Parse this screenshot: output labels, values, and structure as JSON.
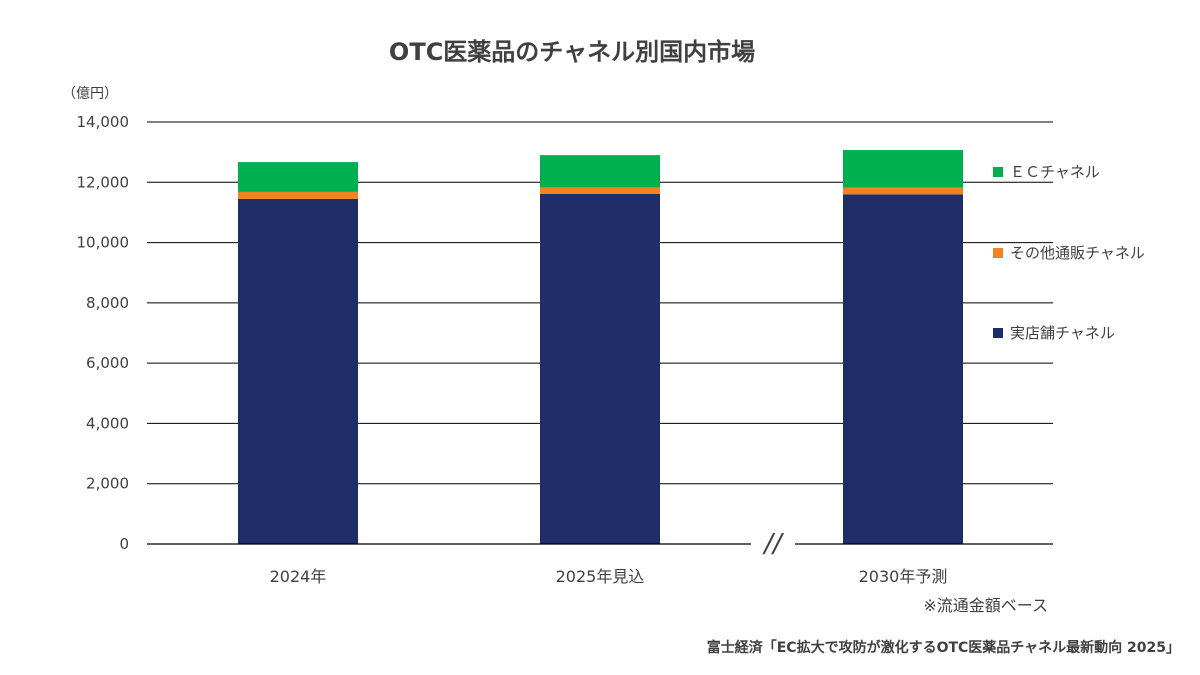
{
  "chart_data": {
    "type": "bar",
    "stacked": true,
    "title": "OTC医薬品のチャネル別国内市場",
    "unit_label": "（億円）",
    "categories": [
      "2024年",
      "2025年見込",
      "2030年予測"
    ],
    "ylim": [
      0,
      14000
    ],
    "yticks": [
      0,
      2000,
      4000,
      6000,
      8000,
      10000,
      12000,
      14000
    ],
    "ytick_labels": [
      "0",
      "2,000",
      "4,000",
      "6,000",
      "8,000",
      "10,000",
      "12,000",
      "14,000"
    ],
    "grid": true,
    "axis_break_between": [
      1,
      2
    ],
    "axis_break_label": "//",
    "legend_position": "right",
    "series": [
      {
        "name": "実店舗チャネル",
        "color": "#1f2d68",
        "values": [
          11450,
          11620,
          11600
        ]
      },
      {
        "name": "その他通販チャネル",
        "color": "#f58220",
        "values": [
          230,
          210,
          220
        ]
      },
      {
        "name": "ＥＣチャネル",
        "color": "#00b050",
        "values": [
          990,
          1070,
          1250
        ]
      }
    ],
    "legend_order": [
      2,
      1,
      0
    ]
  },
  "note": "※流通金額ベース",
  "source": "富士経済「EC拡大で攻防が激化するOTC医薬品チャネル最新動向 2025」"
}
